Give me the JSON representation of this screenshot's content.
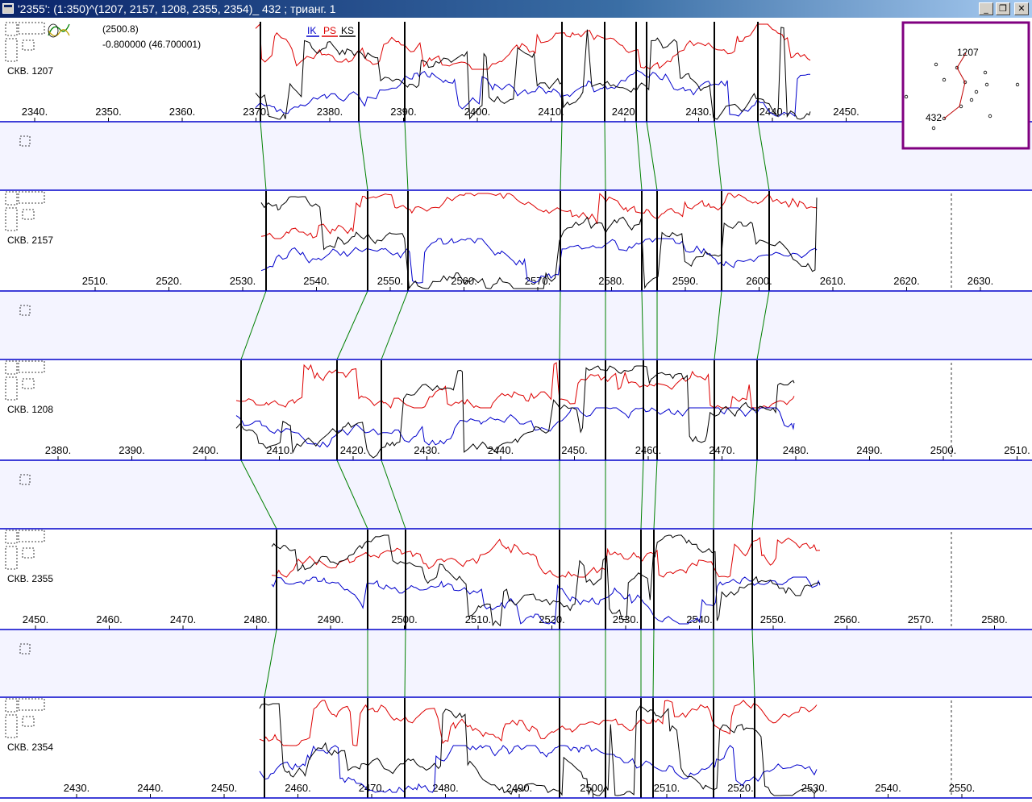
{
  "window": {
    "title": "'2355': (1:350)^(1207, 2157, 1208, 2355, 2354)_ 432 ; трианг. 1",
    "buttons": {
      "minimize": "_",
      "restore": "❐",
      "close": "✕"
    }
  },
  "legend": {
    "ik": "IK",
    "ps": "PS",
    "ks": "KS"
  },
  "colors": {
    "ik": "#0000cc",
    "ps": "#dd0000",
    "ks": "#000000",
    "separator": "#0000cc",
    "correlation": "#008000",
    "gap": "#f4f4ff",
    "map_border": "#800080"
  },
  "info": {
    "line1": "(2500.8)",
    "line2": "-0.800000 (46.700001)"
  },
  "map": {
    "well_top": "1207",
    "well_bottom": "432"
  },
  "tracks": [
    {
      "label": "СКВ. 1207",
      "depth_start": 2340,
      "ticks": [
        "2340.",
        "2350.",
        "2360.",
        "2370.",
        "2380.",
        "2390.",
        "2400.",
        "2410.",
        "2420.",
        "2430.",
        "2440.",
        "2450."
      ]
    },
    {
      "label": "СКВ. 2157",
      "depth_start": 2510,
      "ticks": [
        "2510.",
        "2520.",
        "2530.",
        "2540.",
        "2550.",
        "2560.",
        "2570.",
        "2580.",
        "2590.",
        "2600.",
        "2610.",
        "2620.",
        "2630."
      ]
    },
    {
      "label": "СКВ. 1208",
      "depth_start": 2380,
      "ticks": [
        "2380.",
        "2390.",
        "2400.",
        "2410.",
        "2420.",
        "2430.",
        "2440.",
        "2450.",
        "2460.",
        "2470.",
        "2480.",
        "2490.",
        "2500.",
        "2510."
      ]
    },
    {
      "label": "СКВ. 2355",
      "depth_start": 2450,
      "ticks": [
        "2450.",
        "2460.",
        "2470.",
        "2480.",
        "2490.",
        "2500.",
        "2510.",
        "2520.",
        "2530.",
        "2540.",
        "2550.",
        "2560.",
        "2570.",
        "2580."
      ]
    },
    {
      "label": "СКВ. 2354",
      "depth_start": 2430,
      "ticks": [
        "2430.",
        "2440.",
        "2450.",
        "2460.",
        "2470.",
        "2480.",
        "2490.",
        "2500.",
        "2510.",
        "2520.",
        "2530.",
        "2540.",
        "2550."
      ]
    }
  ]
}
